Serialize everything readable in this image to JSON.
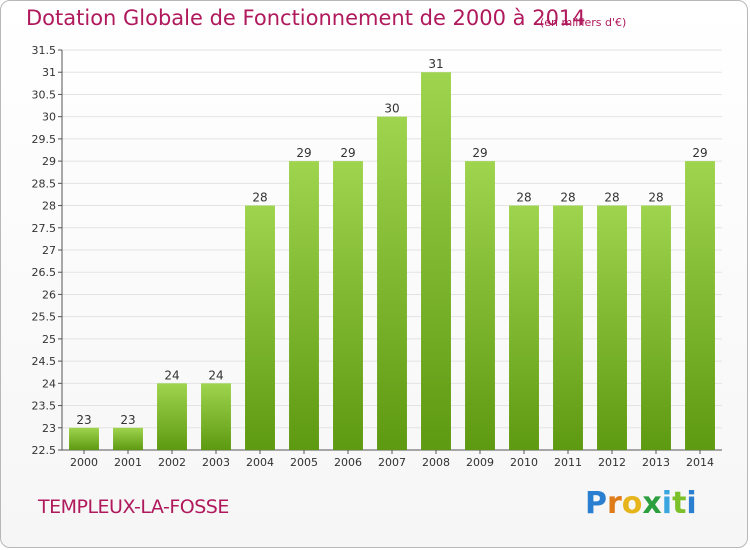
{
  "header": {
    "title": "Dotation Globale de Fonctionnement de 2000 à 2014",
    "unit": "(en milliers d'€)"
  },
  "footer": {
    "commune": "TEMPLEUX-LA-FOSSE",
    "brand": [
      "P",
      "r",
      "o",
      "x",
      "i",
      "t",
      "i"
    ]
  },
  "colors": {
    "title": "#b0195c",
    "bar_top": "#9fd44e",
    "bar_bottom": "#5e9912",
    "grid": "#e3e3e3"
  },
  "chart_data": {
    "type": "bar",
    "title": "Dotation Globale de Fonctionnement de 2000 à 2014",
    "subtitle": "(en milliers d'€)",
    "xlabel": "",
    "ylabel": "",
    "categories": [
      "2000",
      "2001",
      "2002",
      "2003",
      "2004",
      "2005",
      "2006",
      "2007",
      "2008",
      "2009",
      "2010",
      "2011",
      "2012",
      "2013",
      "2014"
    ],
    "values": [
      23,
      23,
      24,
      24,
      28,
      29,
      29,
      30,
      31,
      29,
      28,
      28,
      28,
      28,
      29
    ],
    "value_labels": [
      "23",
      "23",
      "24",
      "24",
      "28",
      "29",
      "29",
      "30",
      "31",
      "29",
      "28",
      "28",
      "28",
      "28",
      "29"
    ],
    "ylim": [
      22.5,
      31.5
    ],
    "yticks": [
      "22.5",
      "23",
      "23.5",
      "24",
      "24.5",
      "25",
      "25.5",
      "26",
      "26.5",
      "27",
      "27.5",
      "28",
      "28.5",
      "29",
      "29.5",
      "30",
      "30.5",
      "31",
      "31.5"
    ],
    "grid": true,
    "legend": "none"
  }
}
